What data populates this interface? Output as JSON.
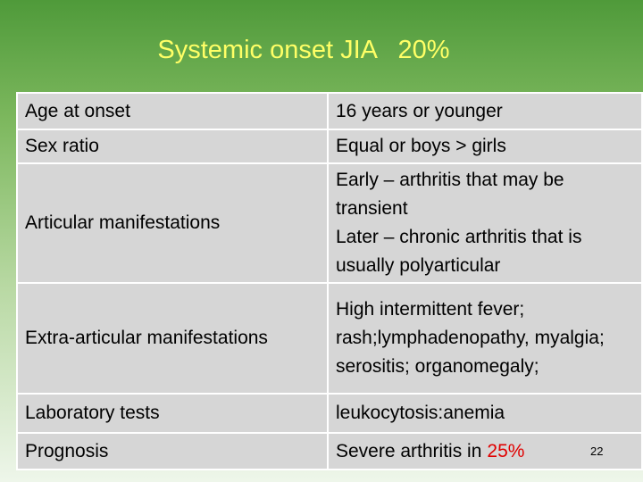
{
  "slide": {
    "title": "Systemic onset JIA   20%",
    "page_number": "22",
    "table": {
      "rows": [
        {
          "label": "Age at onset",
          "value": [
            "16 years or younger"
          ]
        },
        {
          "label": "Sex ratio",
          "value": [
            "Equal or boys > girls"
          ]
        },
        {
          "label": "Articular manifestations",
          "value": [
            "Early – arthritis that may be transient",
            "Later – chronic arthritis that is usually polyarticular"
          ]
        },
        {
          "label": "Extra-articular manifestations",
          "value": [
            "High intermittent fever; rash;lymphadenopathy, myalgia; serositis; organomegaly;"
          ]
        },
        {
          "label": "Laboratory tests",
          "value": [
            "leukocytosis:anemia"
          ]
        },
        {
          "label": "Prognosis",
          "value": [
            "Severe arthritis in"
          ],
          "highlight": "25%"
        }
      ]
    }
  }
}
